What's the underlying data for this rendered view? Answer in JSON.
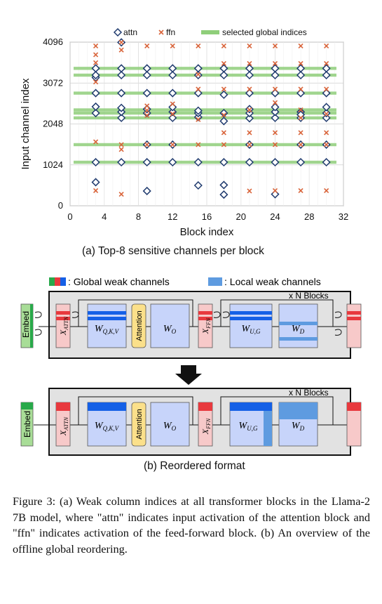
{
  "chart_data": {
    "type": "scatter",
    "title": "(a) Top-8 sensitive channels per block",
    "xlabel": "Block index",
    "ylabel": "Input channel index",
    "xlim": [
      0,
      32
    ],
    "ylim": [
      0,
      4096
    ],
    "x_ticks": [
      "0",
      "4",
      "8",
      "12",
      "16",
      "20",
      "24",
      "28",
      "32"
    ],
    "y_ticks": [
      "0",
      "1024",
      "2048",
      "3072",
      "4096"
    ],
    "grid": true,
    "legend_position": "top",
    "legend": [
      "attn",
      "ffn",
      "selected global indices"
    ],
    "series": [
      {
        "name": "attn",
        "marker": "diamond",
        "color": "#1f3a6e",
        "points": [
          [
            3,
            590
          ],
          [
            3,
            1090
          ],
          [
            3,
            2320
          ],
          [
            3,
            2480
          ],
          [
            3,
            2820
          ],
          [
            3,
            3210
          ],
          [
            3,
            3270
          ],
          [
            3,
            3440
          ],
          [
            6,
            1090
          ],
          [
            6,
            2200
          ],
          [
            6,
            2350
          ],
          [
            6,
            2450
          ],
          [
            6,
            2820
          ],
          [
            6,
            3270
          ],
          [
            6,
            3440
          ],
          [
            6,
            4090
          ],
          [
            9,
            370
          ],
          [
            9,
            1090
          ],
          [
            9,
            2320
          ],
          [
            9,
            2420
          ],
          [
            9,
            2820
          ],
          [
            9,
            3270
          ],
          [
            9,
            3440
          ],
          [
            9,
            1530
          ],
          [
            12,
            1090
          ],
          [
            12,
            2200
          ],
          [
            12,
            2350
          ],
          [
            12,
            2470
          ],
          [
            12,
            2820
          ],
          [
            12,
            3270
          ],
          [
            12,
            3440
          ],
          [
            12,
            1530
          ],
          [
            15,
            1090
          ],
          [
            15,
            510
          ],
          [
            15,
            2220
          ],
          [
            15,
            2320
          ],
          [
            15,
            2380
          ],
          [
            15,
            2820
          ],
          [
            15,
            3270
          ],
          [
            15,
            3440
          ],
          [
            18,
            1090
          ],
          [
            18,
            280
          ],
          [
            18,
            520
          ],
          [
            18,
            2120
          ],
          [
            18,
            2320
          ],
          [
            18,
            2780
          ],
          [
            18,
            3270
          ],
          [
            18,
            3440
          ],
          [
            21,
            1090
          ],
          [
            21,
            2190
          ],
          [
            21,
            2320
          ],
          [
            21,
            2420
          ],
          [
            21,
            2820
          ],
          [
            21,
            3270
          ],
          [
            21,
            3440
          ],
          [
            21,
            1530
          ],
          [
            24,
            290
          ],
          [
            24,
            1090
          ],
          [
            24,
            2200
          ],
          [
            24,
            2350
          ],
          [
            24,
            2470
          ],
          [
            24,
            2820
          ],
          [
            24,
            3270
          ],
          [
            24,
            3440
          ],
          [
            27,
            1090
          ],
          [
            27,
            1530
          ],
          [
            27,
            2200
          ],
          [
            27,
            2350
          ],
          [
            27,
            2820
          ],
          [
            27,
            3270
          ],
          [
            27,
            3440
          ],
          [
            27,
            2280
          ],
          [
            30,
            1090
          ],
          [
            30,
            1530
          ],
          [
            30,
            2200
          ],
          [
            30,
            2320
          ],
          [
            30,
            2470
          ],
          [
            30,
            2820
          ],
          [
            30,
            3270
          ],
          [
            30,
            3440
          ]
        ]
      },
      {
        "name": "ffn",
        "marker": "x",
        "color": "#d9643a",
        "points": [
          [
            3,
            380
          ],
          [
            3,
            1600
          ],
          [
            3,
            3100
          ],
          [
            3,
            3580
          ],
          [
            3,
            3780
          ],
          [
            3,
            4000
          ],
          [
            6,
            290
          ],
          [
            6,
            1410
          ],
          [
            6,
            1530
          ],
          [
            6,
            4090
          ],
          [
            6,
            3900
          ],
          [
            9,
            1530
          ],
          [
            9,
            2260
          ],
          [
            9,
            2390
          ],
          [
            9,
            2500
          ],
          [
            9,
            4000
          ],
          [
            12,
            1530
          ],
          [
            12,
            2300
          ],
          [
            12,
            2550
          ],
          [
            12,
            4000
          ],
          [
            15,
            1530
          ],
          [
            15,
            2160
          ],
          [
            15,
            2920
          ],
          [
            15,
            3290
          ],
          [
            15,
            4000
          ],
          [
            18,
            1530
          ],
          [
            18,
            1830
          ],
          [
            18,
            2270
          ],
          [
            18,
            2920
          ],
          [
            18,
            3560
          ],
          [
            18,
            4000
          ],
          [
            21,
            1530
          ],
          [
            21,
            1830
          ],
          [
            21,
            370
          ],
          [
            21,
            2400
          ],
          [
            21,
            2920
          ],
          [
            21,
            3560
          ],
          [
            21,
            4000
          ],
          [
            24,
            380
          ],
          [
            24,
            1530
          ],
          [
            24,
            1830
          ],
          [
            24,
            2580
          ],
          [
            24,
            2920
          ],
          [
            24,
            3560
          ],
          [
            24,
            4000
          ],
          [
            27,
            380
          ],
          [
            27,
            1530
          ],
          [
            27,
            1830
          ],
          [
            27,
            2200
          ],
          [
            27,
            2400
          ],
          [
            27,
            2920
          ],
          [
            27,
            3560
          ],
          [
            27,
            4000
          ],
          [
            30,
            380
          ],
          [
            30,
            1530
          ],
          [
            30,
            1830
          ],
          [
            30,
            2300
          ],
          [
            30,
            2920
          ],
          [
            30,
            3560
          ],
          [
            30,
            4000
          ]
        ]
      },
      {
        "name": "selected global indices",
        "marker": "band",
        "color": "#8fce7a",
        "values": [
          1090,
          1530,
          2200,
          2320,
          2400,
          2820,
          3270,
          3440
        ]
      }
    ]
  },
  "diagram": {
    "legend_global": ": Global weak channels",
    "legend_local": ": Local weak channels",
    "repeat_label": "x N Blocks",
    "embed_label": "Embed",
    "x_attn": "X",
    "x_attn_sub": "ATTN",
    "x_ffn": "X",
    "x_ffn_sub": "FFN",
    "wqkv": "W",
    "wqkv_sub": "Q,K,V",
    "attention_label": "Attention",
    "wo": "W",
    "wo_sub": "O",
    "wug": "W",
    "wug_sub": "U,G",
    "wd": "W",
    "wd_sub": "D",
    "caption_b": "(b) Reordered format",
    "colors": {
      "red": "#e8393e",
      "pink": "#f7c9c9",
      "blue": "#1560e6",
      "lightblue": "#c7d4fa",
      "localblue": "#5e9be0",
      "green": "#28a94a",
      "lightgreen": "#a8dd97",
      "attention": "#fbe08a",
      "panel": "#e2e2e2"
    }
  },
  "caption": {
    "text": "Figure 3: (a) Weak column indices at all transformer blocks in the Llama-2 7B model, where \"attn\" indicates input activation of the attention block and \"ffn\" indicates activation of the feed-forward block. (b) An overview of the offline global reordering."
  }
}
